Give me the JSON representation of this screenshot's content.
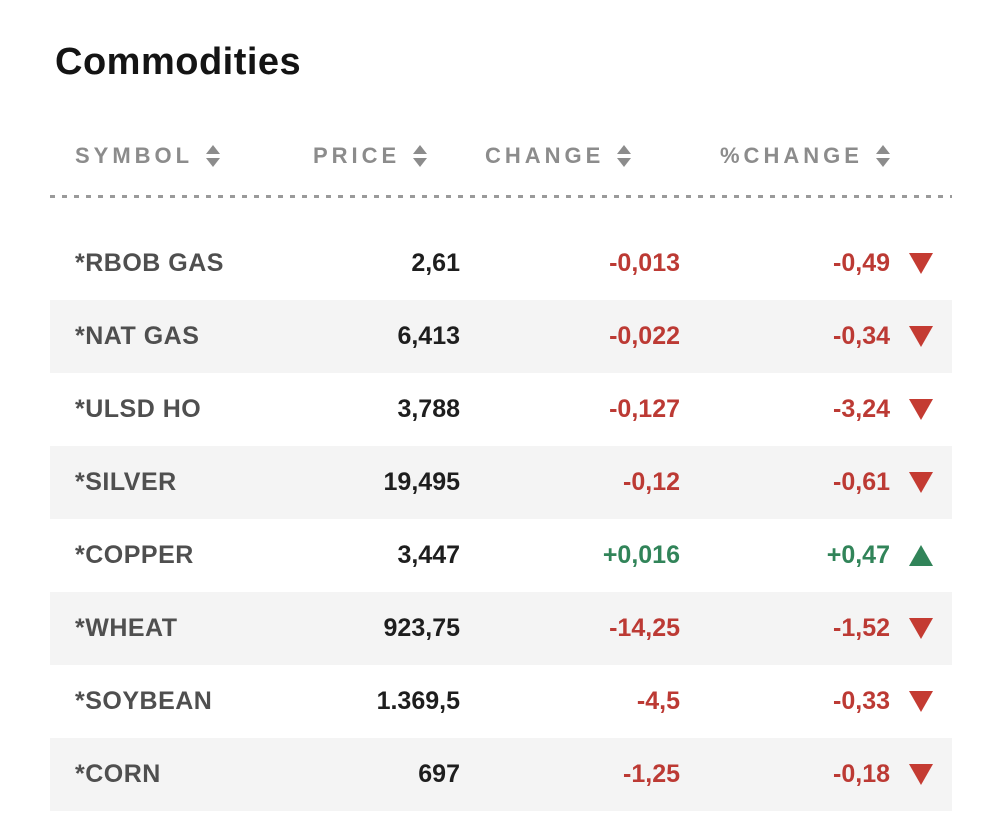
{
  "page": {
    "title": "Commodities"
  },
  "table": {
    "columns": [
      {
        "label": "SYMBOL"
      },
      {
        "label": "PRICE"
      },
      {
        "label": "CHANGE"
      },
      {
        "label": "%CHANGE"
      }
    ],
    "rows": [
      {
        "symbol": "*RBOB GAS",
        "price": "2,61",
        "change": "-0,013",
        "pct_change": "-0,49",
        "direction": "down"
      },
      {
        "symbol": "*NAT GAS",
        "price": "6,413",
        "change": "-0,022",
        "pct_change": "-0,34",
        "direction": "down"
      },
      {
        "symbol": "*ULSD HO",
        "price": "3,788",
        "change": "-0,127",
        "pct_change": "-3,24",
        "direction": "down"
      },
      {
        "symbol": "*SILVER",
        "price": "19,495",
        "change": "-0,12",
        "pct_change": "-0,61",
        "direction": "down"
      },
      {
        "symbol": "*COPPER",
        "price": "3,447",
        "change": "+0,016",
        "pct_change": "+0,47",
        "direction": "up"
      },
      {
        "symbol": "*WHEAT",
        "price": "923,75",
        "change": "-14,25",
        "pct_change": "-1,52",
        "direction": "down"
      },
      {
        "symbol": "*SOYBEAN",
        "price": "1.369,5",
        "change": "-4,5",
        "pct_change": "-0,33",
        "direction": "down"
      },
      {
        "symbol": "*CORN",
        "price": "697",
        "change": "-1,25",
        "pct_change": "-0,18",
        "direction": "down"
      }
    ],
    "colors": {
      "positive": "#318459",
      "negative": "#bc3a34",
      "stripe": "#f4f4f4",
      "header_text": "#8c8c8c",
      "symbol_text": "#4f4f4f",
      "price_text": "#1e1e1e"
    },
    "icons": {
      "sort": "sort-arrows-icon",
      "up": "up-triangle-icon",
      "down": "down-triangle-icon"
    }
  }
}
